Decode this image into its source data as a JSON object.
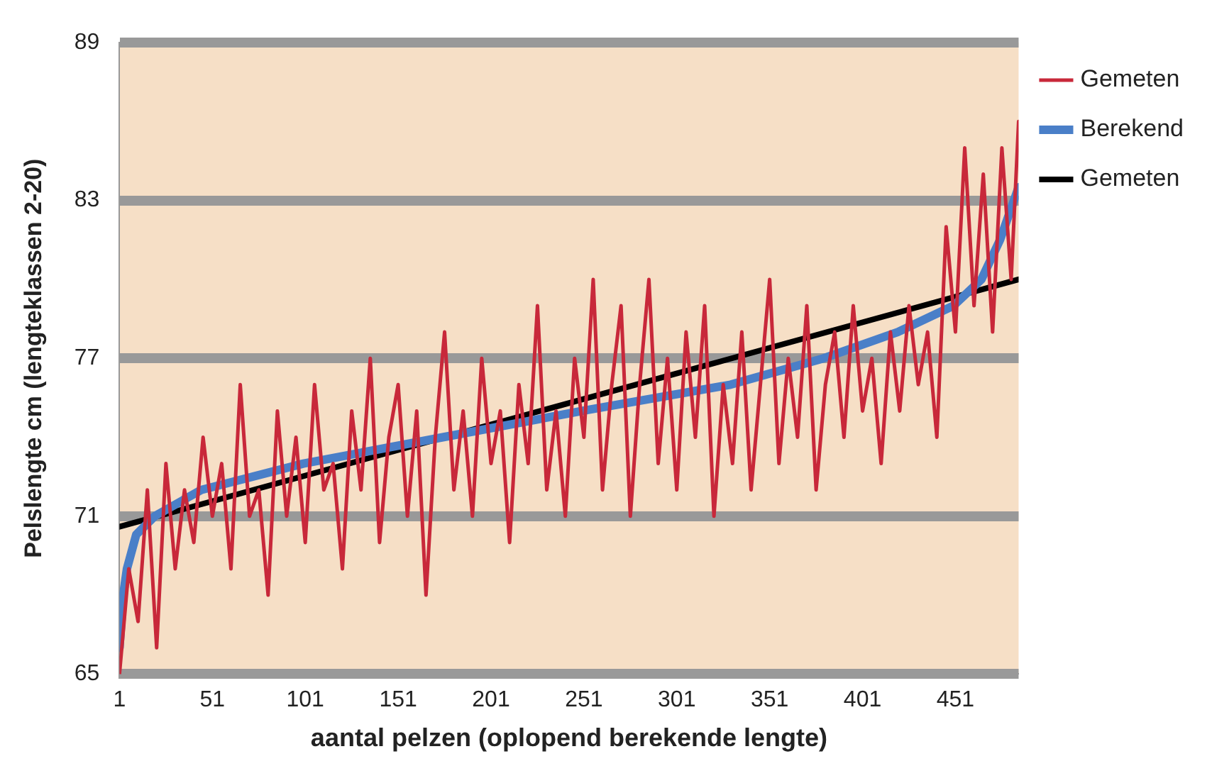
{
  "chart_data": {
    "type": "line",
    "xlabel": "aantal pelzen (oplopend berekende lengte)",
    "ylabel": "Pelslengte cm (lengteklassen 2-20)",
    "xlim": [
      1,
      485
    ],
    "xticks": [
      1,
      51,
      101,
      151,
      201,
      251,
      301,
      351,
      401,
      451
    ],
    "ylim": [
      65,
      89
    ],
    "yticks": [
      65,
      71,
      77,
      83,
      89
    ],
    "grid": "y",
    "legend": "right",
    "marker": "none",
    "series": [
      {
        "name": "Gemeten",
        "color": "#c8283a",
        "x": [
          1,
          6,
          11,
          16,
          21,
          26,
          31,
          36,
          41,
          46,
          51,
          56,
          61,
          66,
          71,
          76,
          81,
          86,
          91,
          96,
          101,
          106,
          111,
          116,
          121,
          126,
          131,
          136,
          141,
          146,
          151,
          156,
          161,
          166,
          171,
          176,
          181,
          186,
          191,
          196,
          201,
          206,
          211,
          216,
          221,
          226,
          231,
          236,
          241,
          246,
          251,
          256,
          261,
          266,
          271,
          276,
          281,
          286,
          291,
          296,
          301,
          306,
          311,
          316,
          321,
          326,
          331,
          336,
          341,
          346,
          351,
          356,
          361,
          366,
          371,
          376,
          381,
          386,
          391,
          396,
          401,
          406,
          411,
          416,
          421,
          426,
          431,
          436,
          441,
          446,
          451,
          456,
          461,
          466,
          471,
          476,
          481,
          485
        ],
        "values": [
          65,
          69,
          67,
          72,
          66,
          73,
          69,
          72,
          70,
          74,
          71,
          73,
          69,
          76,
          71,
          72,
          68,
          75,
          71,
          74,
          70,
          76,
          72,
          73,
          69,
          75,
          72,
          77,
          70,
          74,
          76,
          71,
          75,
          68,
          74,
          78,
          72,
          75,
          71,
          77,
          73,
          75,
          70,
          76,
          73,
          79,
          72,
          75,
          71,
          77,
          74,
          80,
          72,
          76,
          79,
          71,
          76,
          80,
          73,
          77,
          72,
          78,
          74,
          79,
          71,
          76,
          73,
          78,
          72,
          76,
          80,
          73,
          77,
          74,
          79,
          72,
          76,
          78,
          74,
          79,
          75,
          77,
          73,
          78,
          75,
          79,
          76,
          78,
          74,
          82,
          78,
          85,
          79,
          84,
          78,
          85,
          80,
          86
        ]
      },
      {
        "name": "Berekend",
        "color": "#4a7fc8",
        "x": [
          1,
          3,
          5,
          10,
          20,
          45,
          100,
          175,
          250,
          330,
          380,
          420,
          450,
          465,
          475,
          485
        ],
        "values": [
          66,
          68,
          69,
          70.3,
          71,
          72,
          73,
          74,
          75,
          76,
          77,
          78,
          79,
          80,
          81.5,
          83.5
        ]
      },
      {
        "name": "Gemeten",
        "color": "#000000",
        "x": [
          1,
          485
        ],
        "values": [
          70.6,
          80
        ]
      }
    ]
  }
}
